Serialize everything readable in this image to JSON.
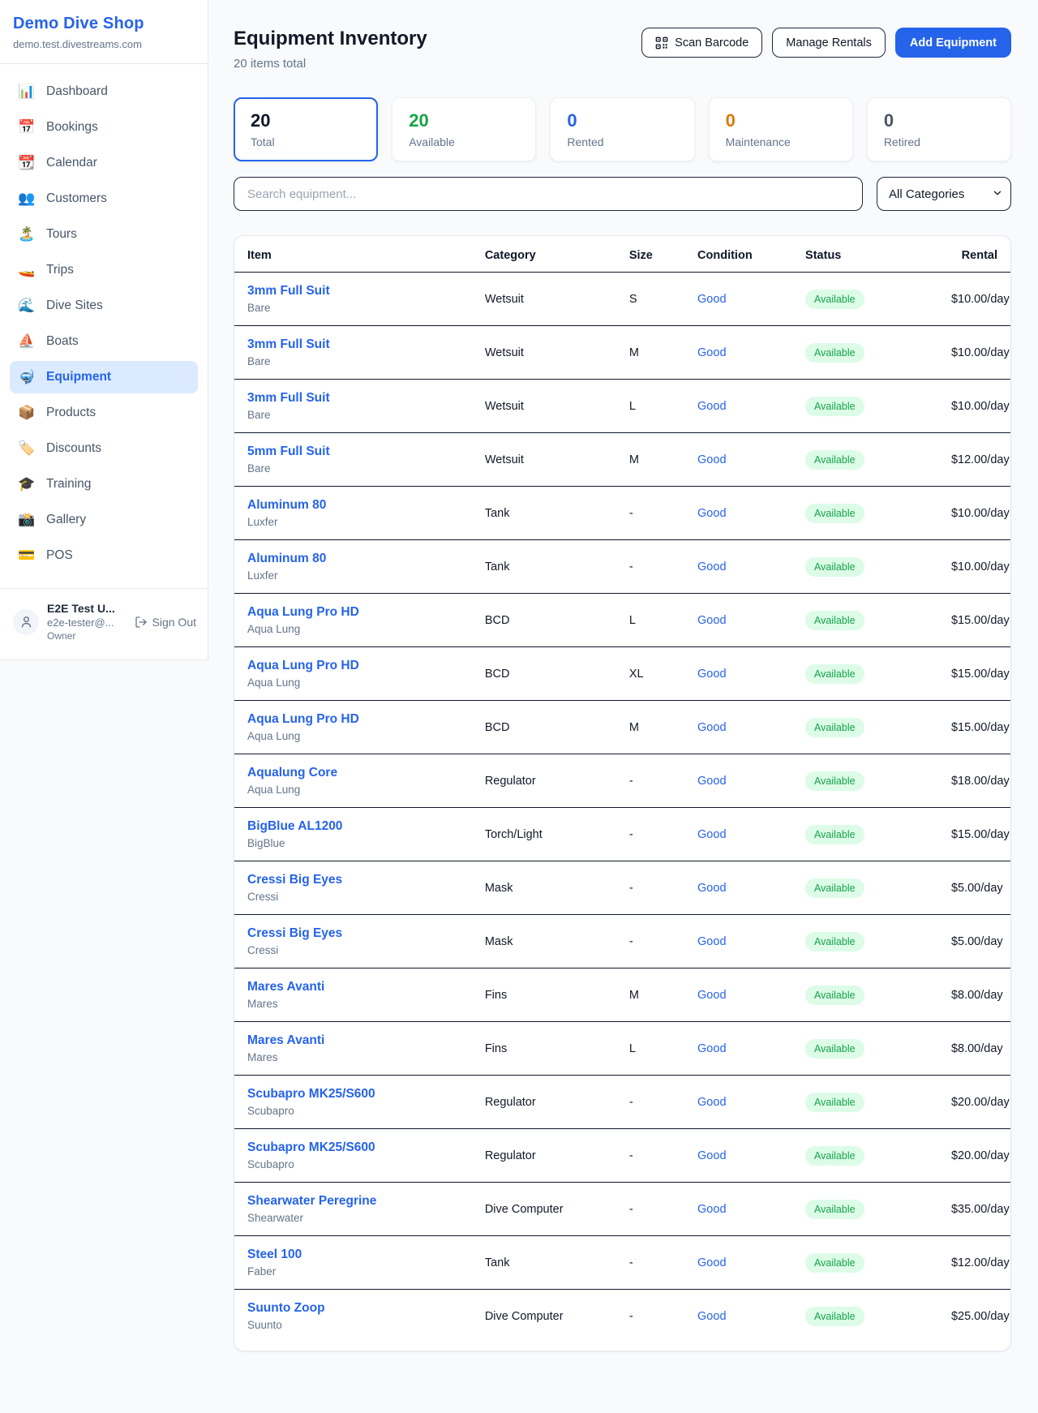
{
  "brand": {
    "name": "Demo Dive Shop",
    "domain": "demo.test.divestreams.com"
  },
  "sidebar": {
    "items": [
      {
        "icon": "📊",
        "icon_name": "bar-chart-icon",
        "label": "Dashboard",
        "active": false
      },
      {
        "icon": "📅",
        "icon_name": "calendar-date-icon",
        "label": "Bookings",
        "active": false
      },
      {
        "icon": "📆",
        "icon_name": "tear-off-calendar-icon",
        "label": "Calendar",
        "active": false
      },
      {
        "icon": "👥",
        "icon_name": "people-icon",
        "label": "Customers",
        "active": false
      },
      {
        "icon": "🏝️",
        "icon_name": "island-icon",
        "label": "Tours",
        "active": false
      },
      {
        "icon": "🚤",
        "icon_name": "speedboat-icon",
        "label": "Trips",
        "active": false
      },
      {
        "icon": "🌊",
        "icon_name": "wave-icon",
        "label": "Dive Sites",
        "active": false
      },
      {
        "icon": "⛵",
        "icon_name": "sailboat-icon",
        "label": "Boats",
        "active": false
      },
      {
        "icon": "🤿",
        "icon_name": "diving-mask-icon",
        "label": "Equipment",
        "active": true
      },
      {
        "icon": "📦",
        "icon_name": "package-icon",
        "label": "Products",
        "active": false
      },
      {
        "icon": "🏷️",
        "icon_name": "tag-icon",
        "label": "Discounts",
        "active": false
      },
      {
        "icon": "🎓",
        "icon_name": "graduation-cap-icon",
        "label": "Training",
        "active": false
      },
      {
        "icon": "📸",
        "icon_name": "camera-icon",
        "label": "Gallery",
        "active": false
      },
      {
        "icon": "💳",
        "icon_name": "credit-card-icon",
        "label": "POS",
        "active": false
      }
    ]
  },
  "user": {
    "name": "E2E Test U...",
    "email": "e2e-tester@...",
    "role": "Owner",
    "sign_out_label": "Sign Out"
  },
  "header": {
    "title": "Equipment Inventory",
    "subtitle": "20 items total",
    "scan_barcode_label": "Scan Barcode",
    "manage_rentals_label": "Manage Rentals",
    "add_equipment_label": "Add Equipment"
  },
  "stats": [
    {
      "value": "20",
      "label": "Total",
      "color": "#0f172a",
      "selected": true
    },
    {
      "value": "20",
      "label": "Available",
      "color": "#16a34a",
      "selected": false
    },
    {
      "value": "0",
      "label": "Rented",
      "color": "#2563eb",
      "selected": false
    },
    {
      "value": "0",
      "label": "Maintenance",
      "color": "#d97706",
      "selected": false
    },
    {
      "value": "0",
      "label": "Retired",
      "color": "#4b5563",
      "selected": false
    }
  ],
  "filters": {
    "search_placeholder": "Search equipment...",
    "category_selected": "All Categories"
  },
  "accent_color": "#2563eb",
  "table": {
    "columns": [
      "Item",
      "Category",
      "Size",
      "Condition",
      "Status",
      "Rental"
    ],
    "rows": [
      {
        "item": "3mm Full Suit",
        "brand": "Bare",
        "category": "Wetsuit",
        "size": "S",
        "condition": "Good",
        "status": "Available",
        "rental": "$10.00/day"
      },
      {
        "item": "3mm Full Suit",
        "brand": "Bare",
        "category": "Wetsuit",
        "size": "M",
        "condition": "Good",
        "status": "Available",
        "rental": "$10.00/day"
      },
      {
        "item": "3mm Full Suit",
        "brand": "Bare",
        "category": "Wetsuit",
        "size": "L",
        "condition": "Good",
        "status": "Available",
        "rental": "$10.00/day"
      },
      {
        "item": "5mm Full Suit",
        "brand": "Bare",
        "category": "Wetsuit",
        "size": "M",
        "condition": "Good",
        "status": "Available",
        "rental": "$12.00/day"
      },
      {
        "item": "Aluminum 80",
        "brand": "Luxfer",
        "category": "Tank",
        "size": "-",
        "condition": "Good",
        "status": "Available",
        "rental": "$10.00/day"
      },
      {
        "item": "Aluminum 80",
        "brand": "Luxfer",
        "category": "Tank",
        "size": "-",
        "condition": "Good",
        "status": "Available",
        "rental": "$10.00/day"
      },
      {
        "item": "Aqua Lung Pro HD",
        "brand": "Aqua Lung",
        "category": "BCD",
        "size": "L",
        "condition": "Good",
        "status": "Available",
        "rental": "$15.00/day"
      },
      {
        "item": "Aqua Lung Pro HD",
        "brand": "Aqua Lung",
        "category": "BCD",
        "size": "XL",
        "condition": "Good",
        "status": "Available",
        "rental": "$15.00/day"
      },
      {
        "item": "Aqua Lung Pro HD",
        "brand": "Aqua Lung",
        "category": "BCD",
        "size": "M",
        "condition": "Good",
        "status": "Available",
        "rental": "$15.00/day"
      },
      {
        "item": "Aqualung Core",
        "brand": "Aqua Lung",
        "category": "Regulator",
        "size": "-",
        "condition": "Good",
        "status": "Available",
        "rental": "$18.00/day"
      },
      {
        "item": "BigBlue AL1200",
        "brand": "BigBlue",
        "category": "Torch/Light",
        "size": "-",
        "condition": "Good",
        "status": "Available",
        "rental": "$15.00/day"
      },
      {
        "item": "Cressi Big Eyes",
        "brand": "Cressi",
        "category": "Mask",
        "size": "-",
        "condition": "Good",
        "status": "Available",
        "rental": "$5.00/day"
      },
      {
        "item": "Cressi Big Eyes",
        "brand": "Cressi",
        "category": "Mask",
        "size": "-",
        "condition": "Good",
        "status": "Available",
        "rental": "$5.00/day"
      },
      {
        "item": "Mares Avanti",
        "brand": "Mares",
        "category": "Fins",
        "size": "M",
        "condition": "Good",
        "status": "Available",
        "rental": "$8.00/day"
      },
      {
        "item": "Mares Avanti",
        "brand": "Mares",
        "category": "Fins",
        "size": "L",
        "condition": "Good",
        "status": "Available",
        "rental": "$8.00/day"
      },
      {
        "item": "Scubapro MK25/S600",
        "brand": "Scubapro",
        "category": "Regulator",
        "size": "-",
        "condition": "Good",
        "status": "Available",
        "rental": "$20.00/day"
      },
      {
        "item": "Scubapro MK25/S600",
        "brand": "Scubapro",
        "category": "Regulator",
        "size": "-",
        "condition": "Good",
        "status": "Available",
        "rental": "$20.00/day"
      },
      {
        "item": "Shearwater Peregrine",
        "brand": "Shearwater",
        "category": "Dive Computer",
        "size": "-",
        "condition": "Good",
        "status": "Available",
        "rental": "$35.00/day"
      },
      {
        "item": "Steel 100",
        "brand": "Faber",
        "category": "Tank",
        "size": "-",
        "condition": "Good",
        "status": "Available",
        "rental": "$12.00/day"
      },
      {
        "item": "Suunto Zoop",
        "brand": "Suunto",
        "category": "Dive Computer",
        "size": "-",
        "condition": "Good",
        "status": "Available",
        "rental": "$25.00/day"
      }
    ]
  }
}
